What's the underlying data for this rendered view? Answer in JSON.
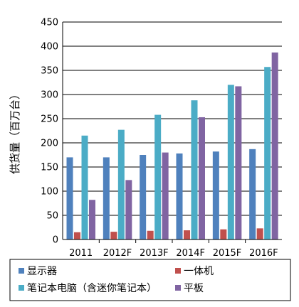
{
  "chart_data": {
    "type": "bar",
    "title": "",
    "xlabel": "",
    "ylabel": "供货量（百万台）",
    "categories": [
      "2011",
      "2012F",
      "2013F",
      "2014F",
      "2015F",
      "2016F"
    ],
    "ylim": [
      0,
      450
    ],
    "yticks": [
      0,
      50,
      100,
      150,
      200,
      250,
      300,
      350,
      400,
      450
    ],
    "grid": true,
    "legend_position": "bottom",
    "series": [
      {
        "name": "显示器",
        "color": "#4F81BD",
        "values": [
          170,
          170,
          175,
          178,
          182,
          187
        ]
      },
      {
        "name": "一体机",
        "color": "#C0504D",
        "values": [
          15,
          16,
          18,
          19,
          21,
          23
        ]
      },
      {
        "name": "笔记本电脑（含迷你笔记本）",
        "color": "#4BACC6",
        "values": [
          215,
          227,
          258,
          288,
          320,
          357
        ]
      },
      {
        "name": "平板",
        "color": "#8064A2",
        "values": [
          82,
          123,
          180,
          253,
          317,
          387
        ]
      }
    ]
  }
}
